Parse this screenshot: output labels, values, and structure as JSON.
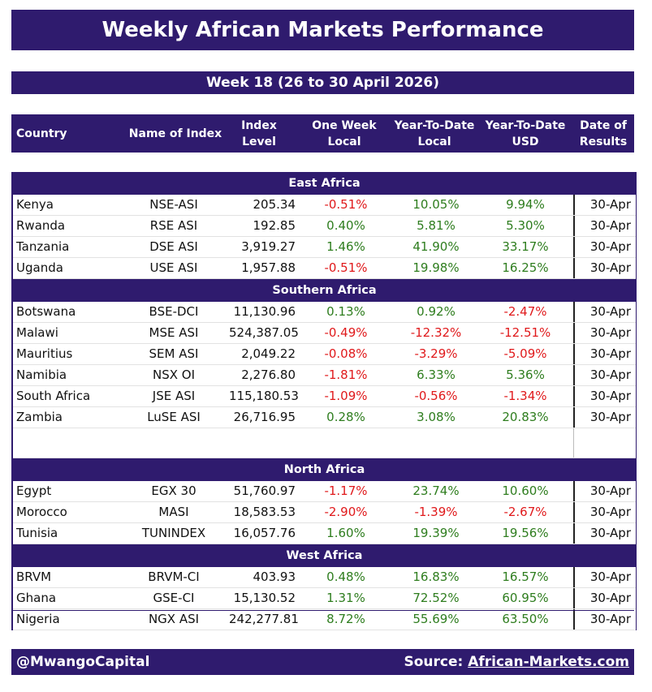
{
  "title": "Weekly African Markets Performance",
  "week": "Week 18 (26 to 30 April 2026)",
  "headers": {
    "country": "Country",
    "index": "Name of Index",
    "level": "Index Level",
    "week_local_1": "One Week",
    "week_local_2": "Local",
    "ytd_local_1": "Year-To-Date",
    "ytd_local_2": "Local",
    "ytd_usd_1": "Year-To-Date",
    "ytd_usd_2": "USD",
    "date_1": "Date of",
    "date_2": "Results"
  },
  "colors": {
    "brand": "#2f1b6e",
    "positive": "#2e7d1e",
    "negative": "#e0191b"
  },
  "sections": [
    {
      "name": "East Africa",
      "rows": [
        {
          "country": "Kenya",
          "index": "NSE-ASI",
          "level": "205.34",
          "week": "-0.51%",
          "ytd": "10.05%",
          "usd": "9.94%",
          "date": "30-Apr"
        },
        {
          "country": "Rwanda",
          "index": "RSE ASI",
          "level": "192.85",
          "week": "0.40%",
          "ytd": "5.81%",
          "usd": "5.30%",
          "date": "30-Apr"
        },
        {
          "country": "Tanzania",
          "index": "DSE ASI",
          "level": "3,919.27",
          "week": "1.46%",
          "ytd": "41.90%",
          "usd": "33.17%",
          "date": "30-Apr"
        },
        {
          "country": "Uganda",
          "index": "USE ASI",
          "level": "1,957.88",
          "week": "-0.51%",
          "ytd": "19.98%",
          "usd": "16.25%",
          "date": "30-Apr"
        }
      ]
    },
    {
      "name": "Southern Africa",
      "rows": [
        {
          "country": "Botswana",
          "index": "BSE-DCI",
          "level": "11,130.96",
          "week": "0.13%",
          "ytd": "0.92%",
          "usd": "-2.47%",
          "date": "30-Apr"
        },
        {
          "country": "Malawi",
          "index": "MSE ASI",
          "level": "524,387.05",
          "week": "-0.49%",
          "ytd": "-12.32%",
          "usd": "-12.51%",
          "date": "30-Apr"
        },
        {
          "country": "Mauritius",
          "index": "SEM ASI",
          "level": "2,049.22",
          "week": "-0.08%",
          "ytd": "-3.29%",
          "usd": "-5.09%",
          "date": "30-Apr"
        },
        {
          "country": "Namibia",
          "index": "NSX OI",
          "level": "2,276.80",
          "week": "-1.81%",
          "ytd": "6.33%",
          "usd": "5.36%",
          "date": "30-Apr"
        },
        {
          "country": "South Africa",
          "index": "JSE ASI",
          "level": "115,180.53",
          "week": "-1.09%",
          "ytd": "-0.56%",
          "usd": "-1.34%",
          "date": "30-Apr"
        },
        {
          "country": "Zambia",
          "index": "LuSE ASI",
          "level": "26,716.95",
          "week": "0.28%",
          "ytd": "3.08%",
          "usd": "20.83%",
          "date": "30-Apr"
        }
      ]
    },
    {
      "name": "North Africa",
      "rows": [
        {
          "country": "Egypt",
          "index": "EGX 30",
          "level": "51,760.97",
          "week": "-1.17%",
          "ytd": "23.74%",
          "usd": "10.60%",
          "date": "30-Apr"
        },
        {
          "country": "Morocco",
          "index": "MASI",
          "level": "18,583.53",
          "week": "-2.90%",
          "ytd": "-1.39%",
          "usd": "-2.67%",
          "date": "30-Apr"
        },
        {
          "country": "Tunisia",
          "index": "TUNINDEX",
          "level": "16,057.76",
          "week": "1.60%",
          "ytd": "19.39%",
          "usd": "19.56%",
          "date": "30-Apr"
        }
      ]
    },
    {
      "name": "West Africa",
      "rows": [
        {
          "country": "BRVM",
          "index": "BRVM-CI",
          "level": "403.93",
          "week": "0.48%",
          "ytd": "16.83%",
          "usd": "16.57%",
          "date": "30-Apr"
        },
        {
          "country": "Ghana",
          "index": "GSE-CI",
          "level": "15,130.52",
          "week": "1.31%",
          "ytd": "72.52%",
          "usd": "60.95%",
          "date": "30-Apr"
        },
        {
          "country": "Nigeria",
          "index": "NGX ASI",
          "level": "242,277.81",
          "week": "8.72%",
          "ytd": "55.69%",
          "usd": "63.50%",
          "date": "30-Apr"
        }
      ]
    }
  ],
  "footer": {
    "handle": "@MwangoCapital",
    "source_label": "Source: ",
    "source_link": "African-Markets.com"
  }
}
